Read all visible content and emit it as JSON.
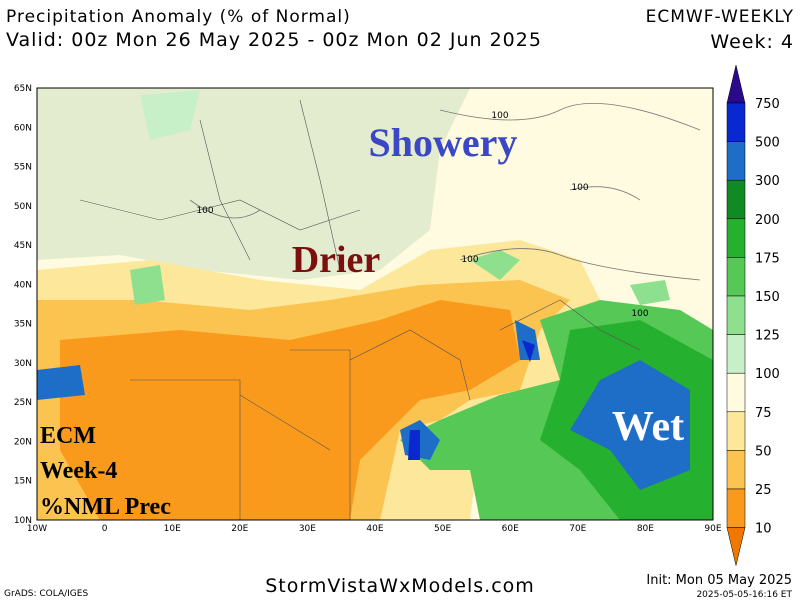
{
  "header": {
    "title": "Precipitation Anomaly (% of Normal)",
    "valid": "Valid: 00z Mon 26 May 2025 - 00z Mon 02 Jun 2025",
    "model": "ECMWF-WEEKLY",
    "week": "Week: 4"
  },
  "map": {
    "lat_labels": [
      "65N",
      "60N",
      "55N",
      "50N",
      "45N",
      "40N",
      "35N",
      "30N",
      "25N",
      "20N",
      "15N",
      "10N"
    ],
    "lon_labels": [
      "10W",
      "0",
      "10E",
      "20E",
      "30E",
      "40E",
      "50E",
      "60E",
      "70E",
      "80E",
      "90E"
    ],
    "annotations": [
      "Showery",
      "Drier",
      "Wet"
    ],
    "contour_labels": [
      "100",
      "100",
      "100",
      "100",
      "100"
    ],
    "stamp": [
      "ECM",
      "Week-4",
      "%NML Prec"
    ]
  },
  "colorbar": {
    "labels": [
      "750",
      "500",
      "300",
      "200",
      "175",
      "150",
      "125",
      "100",
      "75",
      "50",
      "25",
      "10"
    ],
    "colors": [
      "#2a0a8a",
      "#0a28d0",
      "#1e6ec8",
      "#128a24",
      "#26b030",
      "#56c856",
      "#8ee08e",
      "#c8f0c8",
      "#fffbe0",
      "#fde79a",
      "#fbc350",
      "#f99a1c",
      "#f07800"
    ]
  },
  "footer": {
    "credit": "GrADS: COLA/IGES",
    "site": "StormVistaWxModels.com",
    "init": "Init: Mon 05 May 2025",
    "timestamp": "2025-05-05-16:16 ET"
  }
}
